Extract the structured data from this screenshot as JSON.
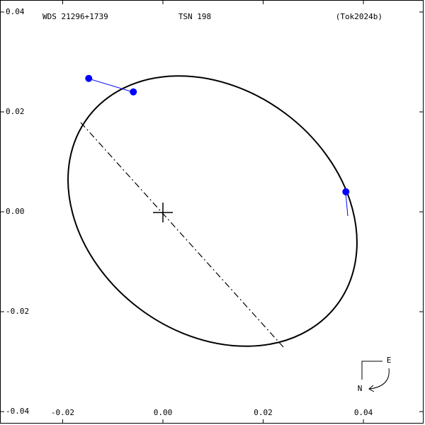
{
  "chart_data": {
    "type": "scatter",
    "title": "TSN 198",
    "left_label": "WDS 21296+1739",
    "right_label": "(Tok2024b)",
    "compass": {
      "east": "E",
      "north": "N"
    },
    "x": [
      -0.0148,
      -0.0059,
      0.0365
    ],
    "y": [
      0.0267,
      0.024,
      0.004
    ],
    "color": "#0000ff",
    "xlim": [
      -0.0325,
      0.052
    ],
    "ylim": [
      -0.0424,
      0.0424
    ],
    "xticks": [
      {
        "value": -0.02,
        "label": "-0.02"
      },
      {
        "value": 0,
        "label": "0.00"
      },
      {
        "value": 0.02,
        "label": "0.02"
      },
      {
        "value": 0.04,
        "label": "0.04"
      }
    ],
    "yticks": [
      {
        "value": -0.04,
        "label": "-0.04"
      },
      {
        "value": -0.02,
        "label": "-0.02"
      },
      {
        "value": 0,
        "label": "0.00"
      },
      {
        "value": 0.02,
        "label": "0.02"
      },
      {
        "value": 0.04,
        "label": "0.04"
      }
    ]
  }
}
